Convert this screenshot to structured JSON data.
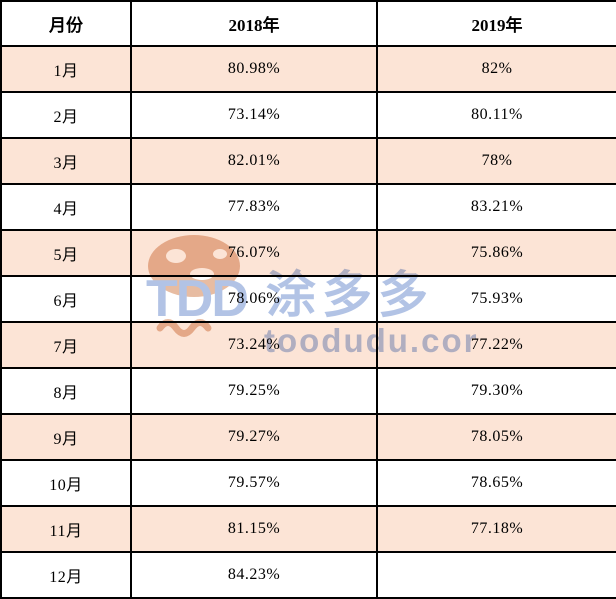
{
  "chart_data": {
    "type": "table",
    "columns": [
      "月份",
      "2018年",
      "2019年"
    ],
    "rows": [
      [
        "1月",
        "80.98%",
        "82%"
      ],
      [
        "2月",
        "73.14%",
        "80.11%"
      ],
      [
        "3月",
        "82.01%",
        "78%"
      ],
      [
        "4月",
        "77.83%",
        "83.21%"
      ],
      [
        "5月",
        "76.07%",
        "75.86%"
      ],
      [
        "6月",
        "78.06%",
        "75.93%"
      ],
      [
        "7月",
        "73.24%",
        "77.22%"
      ],
      [
        "8月",
        "79.25%",
        "79.30%"
      ],
      [
        "9月",
        "79.27%",
        "78.05%"
      ],
      [
        "10月",
        "79.57%",
        "78.65%"
      ],
      [
        "11月",
        "81.15%",
        "77.18%"
      ],
      [
        "12月",
        "84.23%",
        ""
      ]
    ],
    "layout": {
      "striped_rows": "odd months shaded",
      "grid": true
    }
  },
  "watermark": {
    "logo_text": "TDD",
    "brand_text": "涂多多",
    "domain_text": "toodudu.com"
  },
  "colors": {
    "stripe": "#fce4d6",
    "border": "#000000",
    "watermark_blue": "#6688cc",
    "watermark_orange": "#cf7a45"
  }
}
